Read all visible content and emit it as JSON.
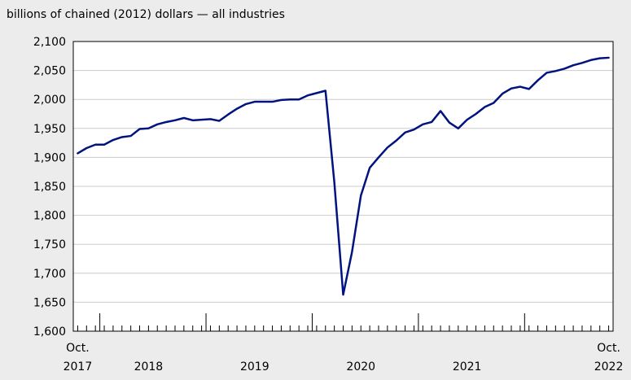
{
  "chart_data": {
    "type": "line",
    "title": "billions of chained (2012) dollars — all industries",
    "xlabel": "",
    "ylabel": "",
    "ylim": [
      1600,
      2100
    ],
    "yticks": [
      "1,600",
      "1,650",
      "1,700",
      "1,750",
      "1,800",
      "1,850",
      "1,900",
      "1,950",
      "2,000",
      "2,050",
      "2,100"
    ],
    "grid": true,
    "x_start": "2017-10",
    "x_end": "2022-10",
    "x_labels": [
      {
        "label": "Oct.",
        "month": "2017-10",
        "row": 1
      },
      {
        "label": "2017",
        "month": "2017-10",
        "row": 2
      },
      {
        "label": "2018",
        "month": "2018-06",
        "row": 2
      },
      {
        "label": "2019",
        "month": "2019-06",
        "row": 2
      },
      {
        "label": "2020",
        "month": "2020-06",
        "row": 2
      },
      {
        "label": "2021",
        "month": "2021-06",
        "row": 2
      },
      {
        "label": "Oct.",
        "month": "2022-10",
        "row": 1
      },
      {
        "label": "2022",
        "month": "2022-10",
        "row": 2
      }
    ],
    "year_boundaries": [
      "2018-01",
      "2019-01",
      "2020-01",
      "2021-01",
      "2022-01"
    ],
    "line_color": "#00137f",
    "series": [
      {
        "name": "",
        "x": [
          "2017-10",
          "2017-11",
          "2017-12",
          "2018-01",
          "2018-02",
          "2018-03",
          "2018-04",
          "2018-05",
          "2018-06",
          "2018-07",
          "2018-08",
          "2018-09",
          "2018-10",
          "2018-11",
          "2018-12",
          "2019-01",
          "2019-02",
          "2019-03",
          "2019-04",
          "2019-05",
          "2019-06",
          "2019-07",
          "2019-08",
          "2019-09",
          "2019-10",
          "2019-11",
          "2019-12",
          "2020-01",
          "2020-02",
          "2020-03",
          "2020-04",
          "2020-05",
          "2020-06",
          "2020-07",
          "2020-08",
          "2020-09",
          "2020-10",
          "2020-11",
          "2020-12",
          "2021-01",
          "2021-02",
          "2021-03",
          "2021-04",
          "2021-05",
          "2021-06",
          "2021-07",
          "2021-08",
          "2021-09",
          "2021-10",
          "2021-11",
          "2021-12",
          "2022-01",
          "2022-02",
          "2022-03",
          "2022-04",
          "2022-05",
          "2022-06",
          "2022-07",
          "2022-08",
          "2022-09",
          "2022-10"
        ],
        "values": [
          1907,
          1916,
          1922,
          1922,
          1930,
          1935,
          1937,
          1949,
          1950,
          1957,
          1961,
          1964,
          1968,
          1964,
          1965,
          1966,
          1963,
          1974,
          1984,
          1992,
          1996,
          1996,
          1996,
          1999,
          2000,
          2000,
          2007,
          2011,
          2015,
          1857,
          1663,
          1737,
          1834,
          1882,
          1900,
          1917,
          1929,
          1943,
          1948,
          1957,
          1961,
          1980,
          1960,
          1950,
          1965,
          1975,
          1987,
          1994,
          2010,
          2019,
          2022,
          2018,
          2033,
          2046,
          2049,
          2053,
          2059,
          2063,
          2068,
          2071,
          2072
        ]
      }
    ]
  }
}
